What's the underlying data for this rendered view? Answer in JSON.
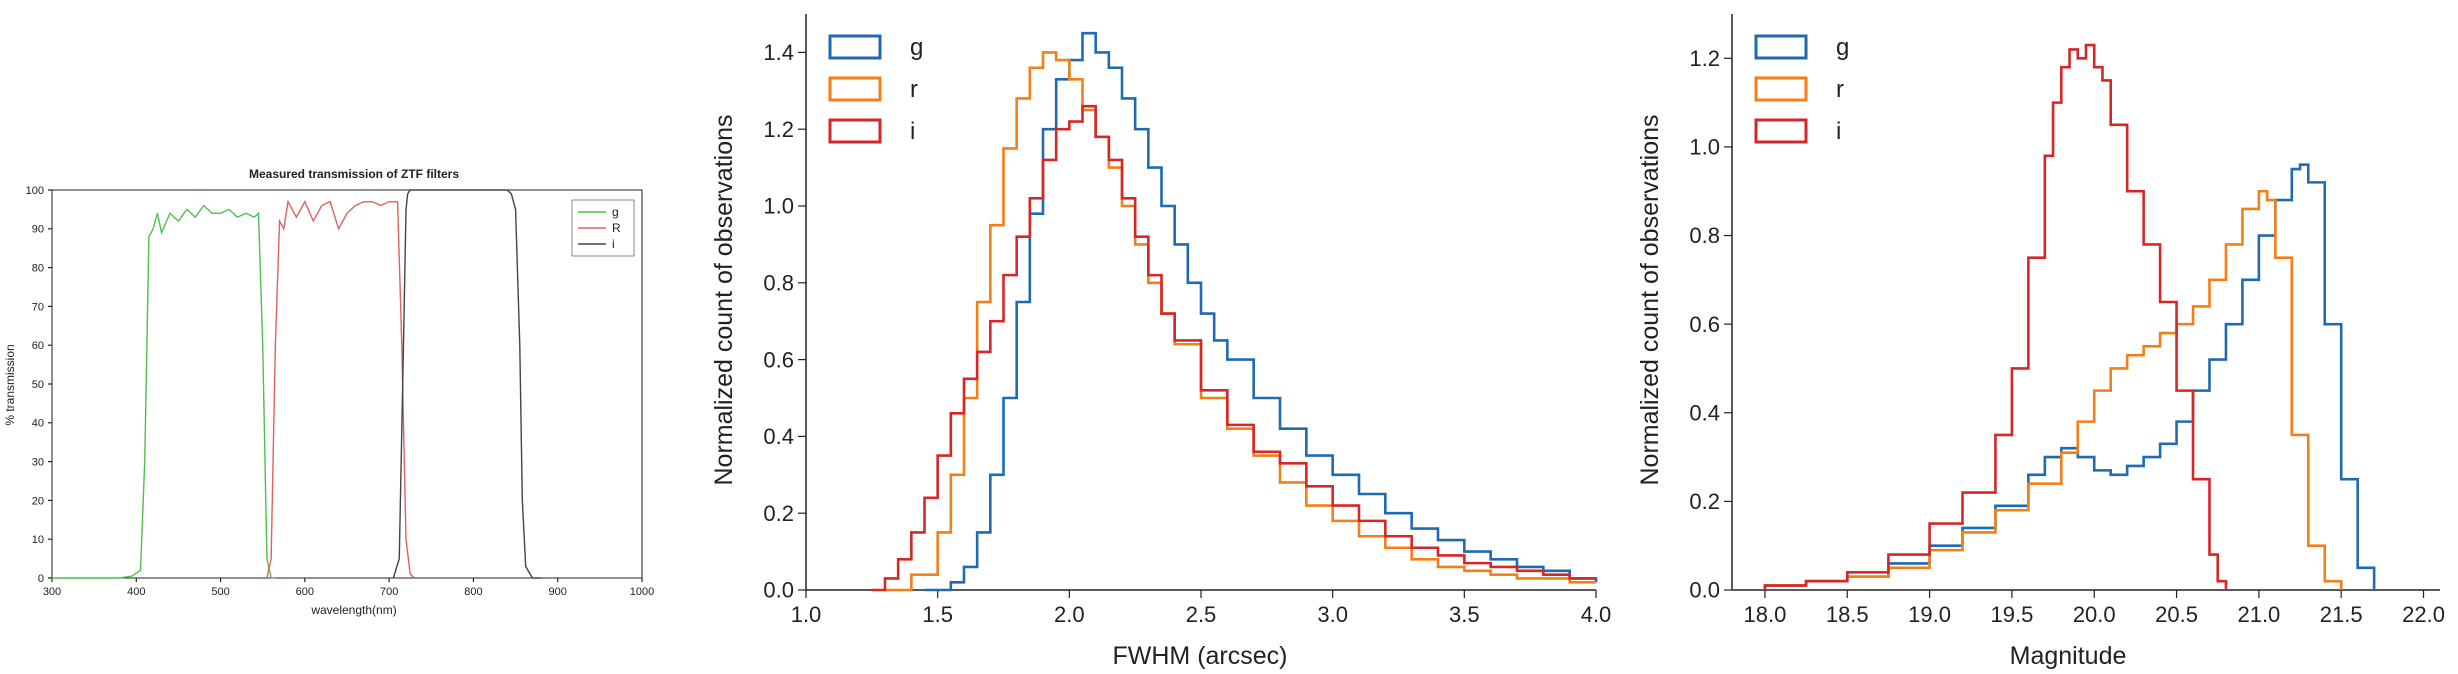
{
  "chart_data": [
    {
      "type": "line",
      "title": "Measured transmission of ZTF filters",
      "xlabel": "wavelength(nm)",
      "ylabel": "% transmission",
      "xlim": [
        300,
        1000
      ],
      "ylim": [
        0,
        100
      ],
      "xticks": [
        "300",
        "400",
        "500",
        "600",
        "700",
        "800",
        "900",
        "1000"
      ],
      "yticks": [
        "0",
        "10",
        "20",
        "30",
        "40",
        "50",
        "60",
        "70",
        "80",
        "90",
        "100"
      ],
      "grid": false,
      "legend": "top-right",
      "series": [
        {
          "name": "g",
          "color": "#4fc04f",
          "x": [
            300,
            380,
            395,
            405,
            410,
            415,
            420,
            425,
            430,
            440,
            450,
            460,
            470,
            480,
            490,
            500,
            510,
            520,
            530,
            540,
            545,
            550,
            555,
            560,
            565
          ],
          "y": [
            0,
            0,
            0.5,
            2,
            30,
            88,
            90,
            94,
            89,
            94,
            92,
            95,
            93,
            96,
            94,
            94,
            95,
            93,
            94,
            93,
            94,
            60,
            5,
            0,
            0
          ]
        },
        {
          "name": "R",
          "color": "#e06060",
          "x": [
            555,
            560,
            565,
            570,
            575,
            580,
            590,
            600,
            610,
            620,
            630,
            640,
            650,
            660,
            670,
            680,
            690,
            700,
            710,
            715,
            720,
            725,
            730
          ],
          "y": [
            0,
            5,
            60,
            92,
            90,
            97,
            93,
            97,
            92,
            96,
            97,
            90,
            94,
            96,
            97,
            97,
            96,
            97,
            97,
            60,
            10,
            1,
            0
          ]
        },
        {
          "name": "i",
          "color": "#444444",
          "x": [
            705,
            712,
            717,
            720,
            722,
            725,
            740,
            760,
            780,
            800,
            820,
            840,
            845,
            850,
            855,
            858,
            862,
            870,
            880
          ],
          "y": [
            0,
            5,
            60,
            95,
            99,
            100,
            100,
            100,
            100,
            100,
            100,
            100,
            99,
            95,
            60,
            20,
            3,
            0,
            0
          ]
        }
      ]
    },
    {
      "type": "line",
      "title": "",
      "xlabel": "FWHM (arcsec)",
      "ylabel": "Normalized count of observations",
      "xlim": [
        1.0,
        4.0
      ],
      "ylim": [
        0.0,
        1.5
      ],
      "xticks": [
        "1.0",
        "1.5",
        "2.0",
        "2.5",
        "3.0",
        "3.5",
        "4.0"
      ],
      "yticks": [
        "0.0",
        "0.2",
        "0.4",
        "0.6",
        "0.8",
        "1.0",
        "1.2",
        "1.4"
      ],
      "grid": false,
      "legend": "top-left",
      "step": true,
      "series": [
        {
          "name": "g",
          "color": "#1f6ab0",
          "x": [
            1.45,
            1.55,
            1.6,
            1.65,
            1.7,
            1.75,
            1.8,
            1.85,
            1.9,
            1.95,
            2.0,
            2.05,
            2.1,
            2.15,
            2.2,
            2.25,
            2.3,
            2.35,
            2.4,
            2.45,
            2.5,
            2.55,
            2.6,
            2.7,
            2.8,
            2.9,
            3.0,
            3.1,
            3.2,
            3.3,
            3.4,
            3.5,
            3.6,
            3.7,
            3.8,
            3.9,
            4.0
          ],
          "y": [
            0.0,
            0.02,
            0.06,
            0.15,
            0.3,
            0.5,
            0.75,
            0.98,
            1.2,
            1.33,
            1.38,
            1.45,
            1.4,
            1.36,
            1.28,
            1.2,
            1.1,
            1.0,
            0.9,
            0.8,
            0.72,
            0.65,
            0.6,
            0.5,
            0.42,
            0.35,
            0.3,
            0.25,
            0.2,
            0.16,
            0.13,
            0.1,
            0.08,
            0.06,
            0.05,
            0.03,
            0.02
          ]
        },
        {
          "name": "r",
          "color": "#f57f17",
          "x": [
            1.3,
            1.4,
            1.5,
            1.55,
            1.6,
            1.65,
            1.7,
            1.75,
            1.8,
            1.85,
            1.9,
            1.95,
            2.0,
            2.05,
            2.1,
            2.15,
            2.2,
            2.25,
            2.3,
            2.35,
            2.4,
            2.5,
            2.6,
            2.7,
            2.8,
            2.9,
            3.0,
            3.1,
            3.2,
            3.3,
            3.4,
            3.5,
            3.6,
            3.7,
            3.8,
            3.9,
            4.0
          ],
          "y": [
            0.0,
            0.04,
            0.15,
            0.3,
            0.5,
            0.75,
            0.95,
            1.15,
            1.28,
            1.36,
            1.4,
            1.38,
            1.33,
            1.25,
            1.18,
            1.1,
            1.0,
            0.9,
            0.8,
            0.72,
            0.64,
            0.5,
            0.42,
            0.35,
            0.28,
            0.22,
            0.18,
            0.14,
            0.11,
            0.08,
            0.06,
            0.05,
            0.04,
            0.03,
            0.03,
            0.02,
            0.02
          ]
        },
        {
          "name": "i",
          "color": "#d62728",
          "x": [
            1.25,
            1.3,
            1.35,
            1.4,
            1.45,
            1.5,
            1.55,
            1.6,
            1.65,
            1.7,
            1.75,
            1.8,
            1.85,
            1.9,
            1.95,
            2.0,
            2.05,
            2.1,
            2.15,
            2.2,
            2.25,
            2.3,
            2.35,
            2.4,
            2.5,
            2.6,
            2.7,
            2.8,
            2.9,
            3.0,
            3.1,
            3.2,
            3.3,
            3.4,
            3.5,
            3.6,
            3.7,
            3.8,
            3.9,
            4.0
          ],
          "y": [
            0.0,
            0.03,
            0.08,
            0.15,
            0.24,
            0.35,
            0.46,
            0.55,
            0.62,
            0.7,
            0.82,
            0.92,
            1.02,
            1.12,
            1.2,
            1.22,
            1.26,
            1.18,
            1.12,
            1.02,
            0.92,
            0.82,
            0.72,
            0.65,
            0.52,
            0.43,
            0.36,
            0.33,
            0.27,
            0.22,
            0.18,
            0.14,
            0.11,
            0.09,
            0.07,
            0.06,
            0.05,
            0.04,
            0.03,
            0.03
          ]
        }
      ]
    },
    {
      "type": "line",
      "title": "",
      "xlabel": "Magnitude",
      "ylabel": "Normalized count of observations",
      "xlim": [
        17.8,
        22.1
      ],
      "ylim": [
        0.0,
        1.3
      ],
      "xticks": [
        "18.0",
        "18.5",
        "19.0",
        "19.5",
        "20.0",
        "20.5",
        "21.0",
        "21.5",
        "22.0"
      ],
      "yticks": [
        "0.0",
        "0.2",
        "0.4",
        "0.6",
        "0.8",
        "1.0",
        "1.2"
      ],
      "grid": false,
      "legend": "top-left",
      "step": true,
      "series": [
        {
          "name": "g",
          "color": "#1f6ab0",
          "x": [
            18.0,
            18.25,
            18.5,
            18.75,
            19.0,
            19.2,
            19.4,
            19.6,
            19.7,
            19.8,
            19.9,
            20.0,
            20.1,
            20.2,
            20.3,
            20.4,
            20.5,
            20.6,
            20.7,
            20.8,
            20.9,
            21.0,
            21.1,
            21.2,
            21.25,
            21.3,
            21.4,
            21.5,
            21.6,
            21.7
          ],
          "y": [
            0.01,
            0.02,
            0.03,
            0.06,
            0.1,
            0.14,
            0.19,
            0.26,
            0.3,
            0.32,
            0.3,
            0.27,
            0.26,
            0.28,
            0.3,
            0.33,
            0.38,
            0.45,
            0.52,
            0.6,
            0.7,
            0.8,
            0.88,
            0.95,
            0.96,
            0.92,
            0.6,
            0.25,
            0.05,
            0.0
          ]
        },
        {
          "name": "r",
          "color": "#f57f17",
          "x": [
            18.0,
            18.25,
            18.5,
            18.75,
            19.0,
            19.2,
            19.4,
            19.6,
            19.8,
            19.9,
            20.0,
            20.1,
            20.2,
            20.3,
            20.4,
            20.5,
            20.6,
            20.7,
            20.8,
            20.9,
            21.0,
            21.05,
            21.1,
            21.2,
            21.3,
            21.4,
            21.5
          ],
          "y": [
            0.01,
            0.02,
            0.03,
            0.05,
            0.09,
            0.13,
            0.18,
            0.24,
            0.31,
            0.38,
            0.45,
            0.5,
            0.53,
            0.55,
            0.58,
            0.6,
            0.64,
            0.7,
            0.78,
            0.86,
            0.9,
            0.88,
            0.75,
            0.35,
            0.1,
            0.02,
            0.0
          ]
        },
        {
          "name": "i",
          "color": "#d62728",
          "x": [
            18.0,
            18.25,
            18.5,
            18.75,
            19.0,
            19.2,
            19.4,
            19.5,
            19.6,
            19.7,
            19.75,
            19.8,
            19.85,
            19.9,
            19.95,
            20.0,
            20.05,
            20.1,
            20.2,
            20.3,
            20.4,
            20.5,
            20.6,
            20.7,
            20.75,
            20.8
          ],
          "y": [
            0.01,
            0.02,
            0.04,
            0.08,
            0.15,
            0.22,
            0.35,
            0.5,
            0.75,
            0.98,
            1.1,
            1.18,
            1.22,
            1.2,
            1.23,
            1.18,
            1.15,
            1.05,
            0.9,
            0.78,
            0.65,
            0.45,
            0.25,
            0.08,
            0.02,
            0.0
          ]
        }
      ]
    }
  ]
}
